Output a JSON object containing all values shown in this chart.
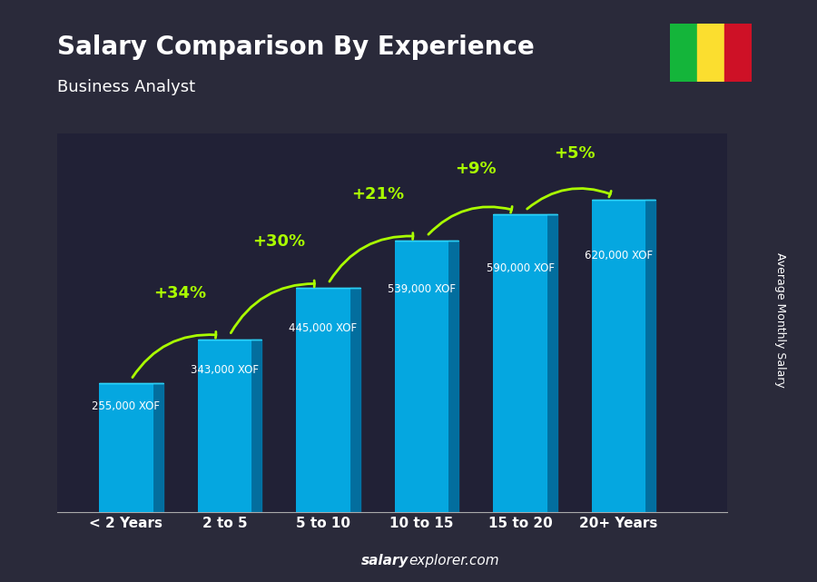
{
  "title": "Salary Comparison By Experience",
  "subtitle": "Business Analyst",
  "categories": [
    "< 2 Years",
    "2 to 5",
    "5 to 10",
    "10 to 15",
    "15 to 20",
    "20+ Years"
  ],
  "values": [
    255000,
    343000,
    445000,
    539000,
    590000,
    620000
  ],
  "labels": [
    "255,000 XOF",
    "343,000 XOF",
    "445,000 XOF",
    "539,000 XOF",
    "590,000 XOF",
    "620,000 XOF"
  ],
  "pct_changes": [
    "+34%",
    "+30%",
    "+21%",
    "+9%",
    "+5%"
  ],
  "bar_color_face": "#00BFFF",
  "bar_color_dark": "#007BB5",
  "bar_color_right": "#005F8E",
  "ylabel": "Average Monthly Salary",
  "footer": "salaryexplorer.com",
  "bg_color": "#1a1a2e",
  "title_color": "#ffffff",
  "subtitle_color": "#ffffff",
  "label_color": "#ffffff",
  "pct_color": "#aaff00",
  "cat_color": "#ffffff",
  "footer_bold": "salary",
  "footer_normal": "explorer.com",
  "flag_colors": [
    "#14B53A",
    "#FBDE2F",
    "#CE1126"
  ],
  "ylim_max": 750000
}
